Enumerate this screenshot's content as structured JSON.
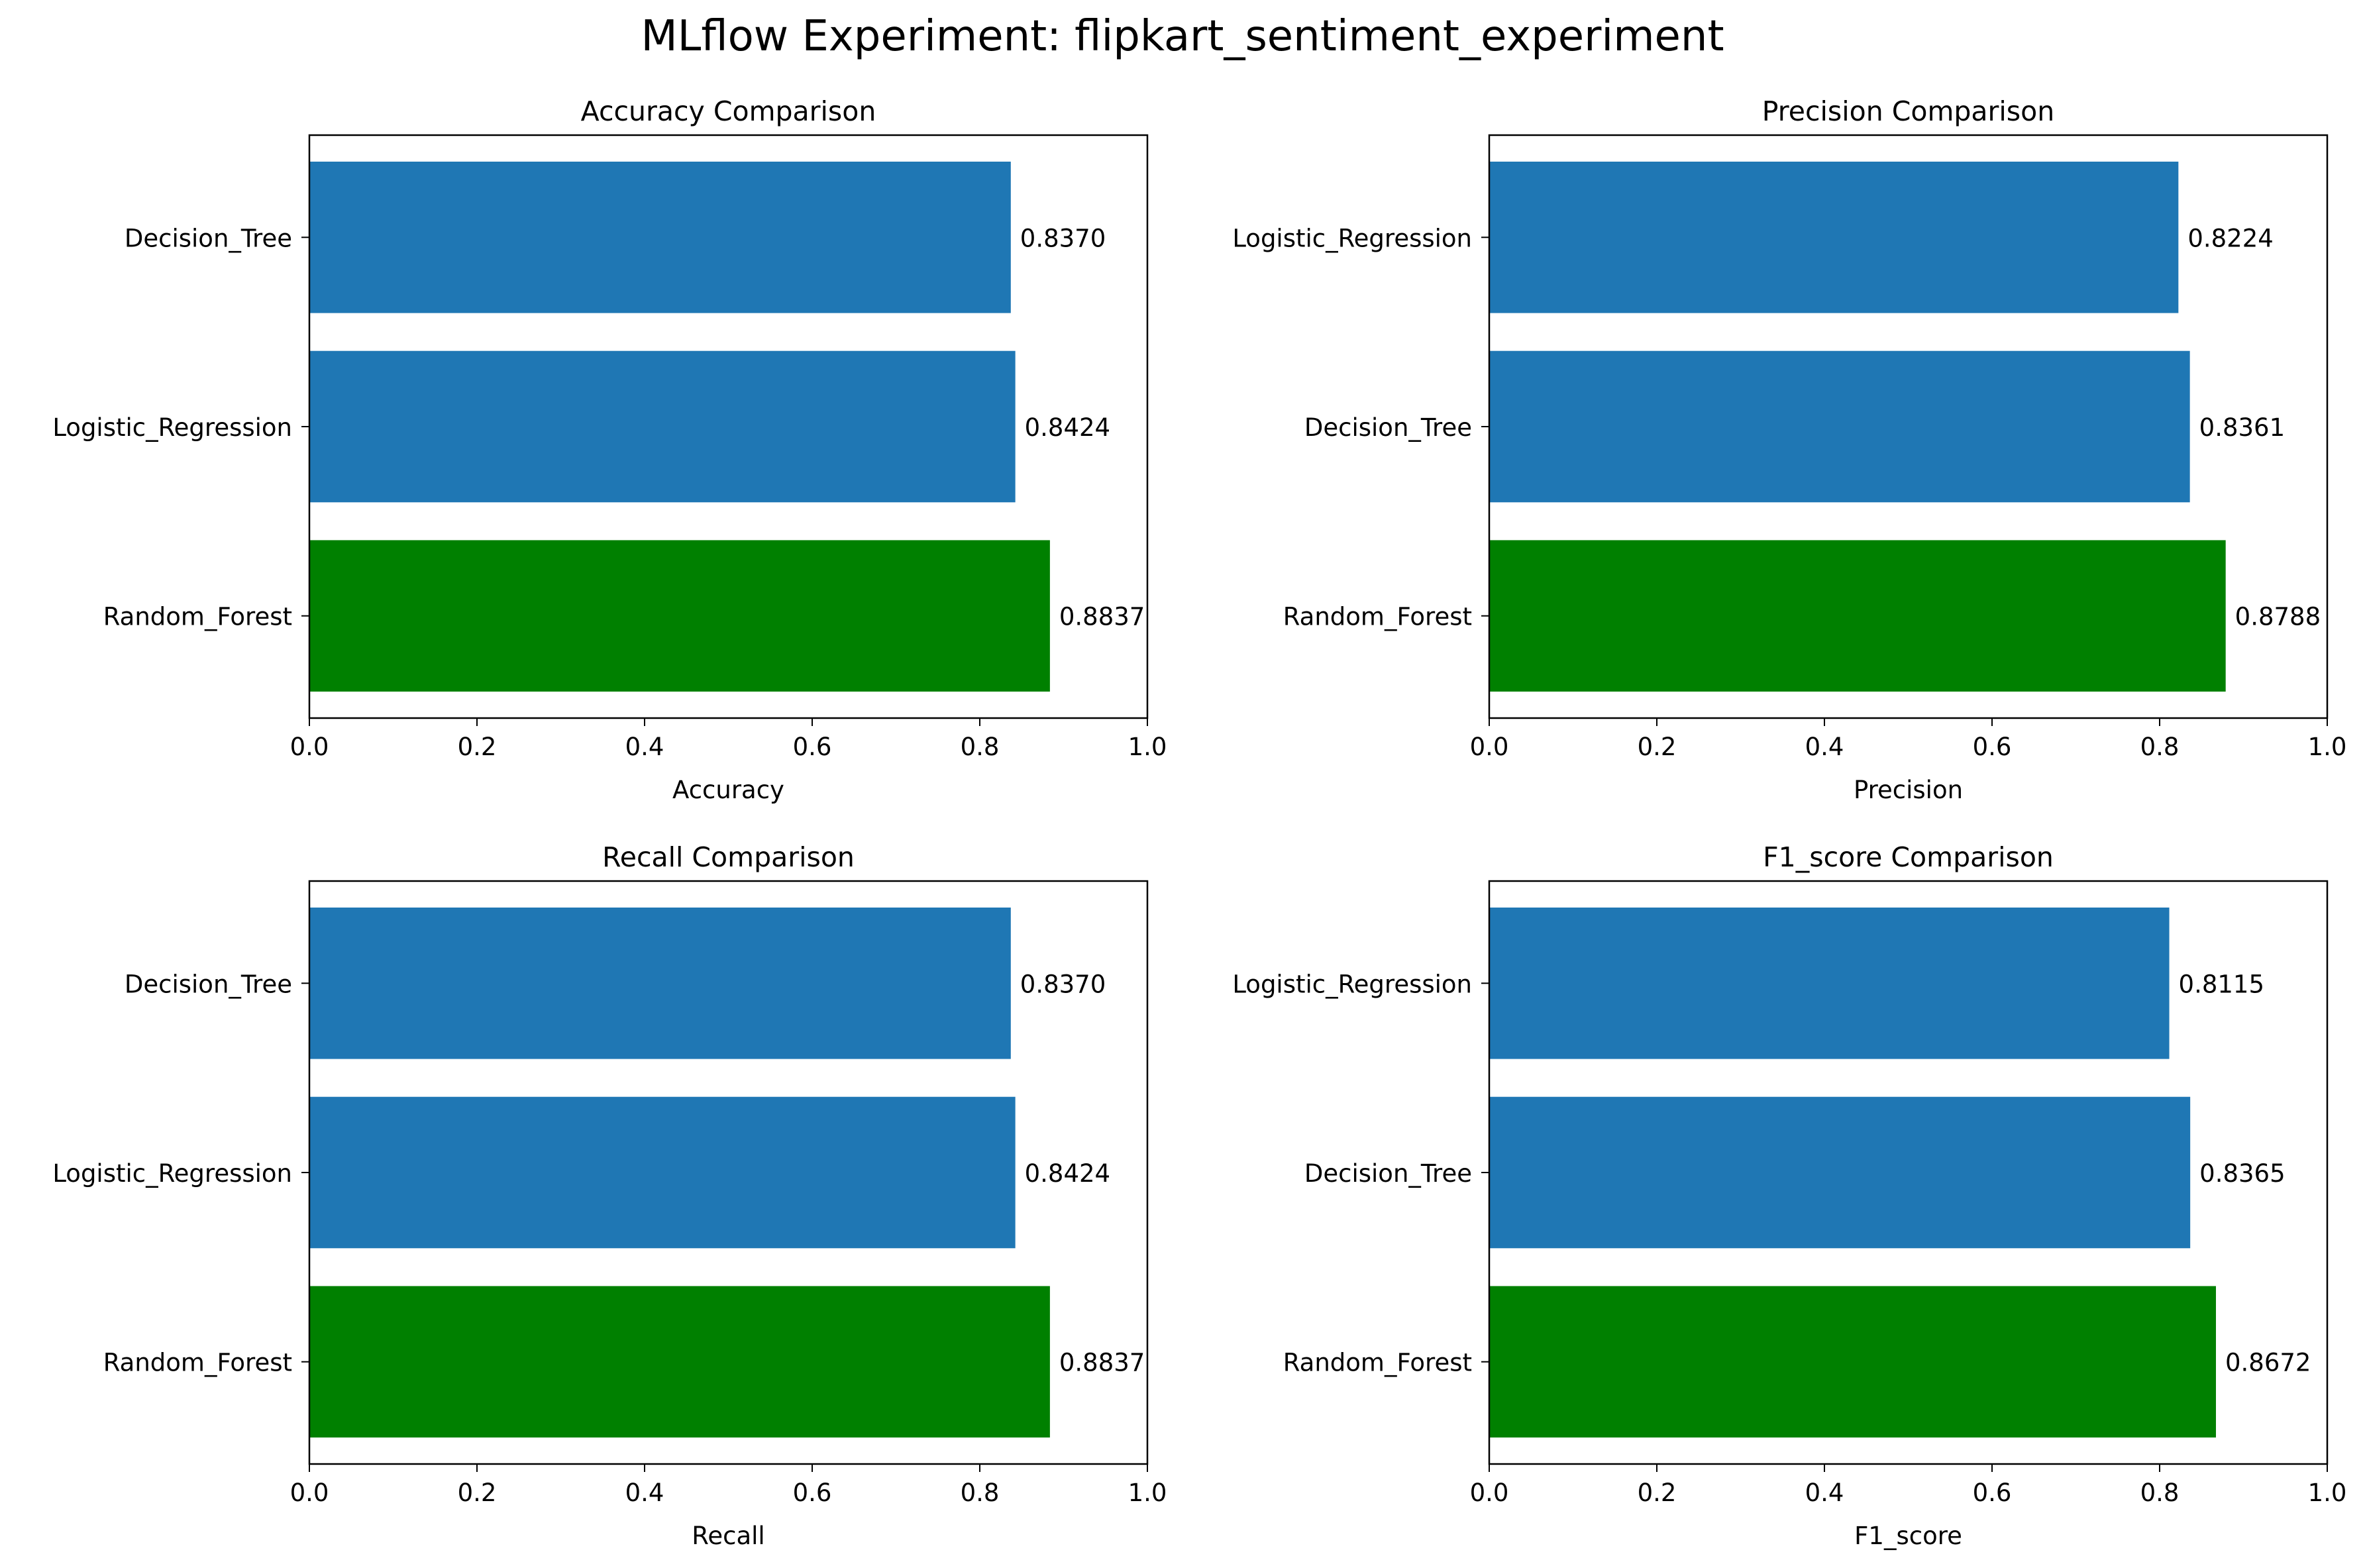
{
  "figure": {
    "title": "MLflow Experiment: flipkart_sentiment_experiment"
  },
  "colors": {
    "default_bar": "#1f77b4",
    "best_bar": "#008000"
  },
  "chart_data": [
    {
      "type": "bar",
      "orientation": "horizontal",
      "title": "Accuracy Comparison",
      "xlabel": "Accuracy",
      "xlim": [
        0,
        1
      ],
      "xticks": [
        "0.0",
        "0.2",
        "0.4",
        "0.6",
        "0.8",
        "1.0"
      ],
      "categories": [
        "Decision_Tree",
        "Logistic_Regression",
        "Random_Forest"
      ],
      "values": [
        0.837,
        0.8424,
        0.8837
      ],
      "value_labels": [
        "0.8370",
        "0.8424",
        "0.8837"
      ],
      "highlight": "Random_Forest"
    },
    {
      "type": "bar",
      "orientation": "horizontal",
      "title": "Precision Comparison",
      "xlabel": "Precision",
      "xlim": [
        0,
        1
      ],
      "xticks": [
        "0.0",
        "0.2",
        "0.4",
        "0.6",
        "0.8",
        "1.0"
      ],
      "categories": [
        "Logistic_Regression",
        "Decision_Tree",
        "Random_Forest"
      ],
      "values": [
        0.8224,
        0.8361,
        0.8788
      ],
      "value_labels": [
        "0.8224",
        "0.8361",
        "0.8788"
      ],
      "highlight": "Random_Forest"
    },
    {
      "type": "bar",
      "orientation": "horizontal",
      "title": "Recall Comparison",
      "xlabel": "Recall",
      "xlim": [
        0,
        1
      ],
      "xticks": [
        "0.0",
        "0.2",
        "0.4",
        "0.6",
        "0.8",
        "1.0"
      ],
      "categories": [
        "Decision_Tree",
        "Logistic_Regression",
        "Random_Forest"
      ],
      "values": [
        0.837,
        0.8424,
        0.8837
      ],
      "value_labels": [
        "0.8370",
        "0.8424",
        "0.8837"
      ],
      "highlight": "Random_Forest"
    },
    {
      "type": "bar",
      "orientation": "horizontal",
      "title": "F1_score Comparison",
      "xlabel": "F1_score",
      "xlim": [
        0,
        1
      ],
      "xticks": [
        "0.0",
        "0.2",
        "0.4",
        "0.6",
        "0.8",
        "1.0"
      ],
      "categories": [
        "Logistic_Regression",
        "Decision_Tree",
        "Random_Forest"
      ],
      "values": [
        0.8115,
        0.8365,
        0.8672
      ],
      "value_labels": [
        "0.8115",
        "0.8365",
        "0.8672"
      ],
      "highlight": "Random_Forest"
    }
  ]
}
